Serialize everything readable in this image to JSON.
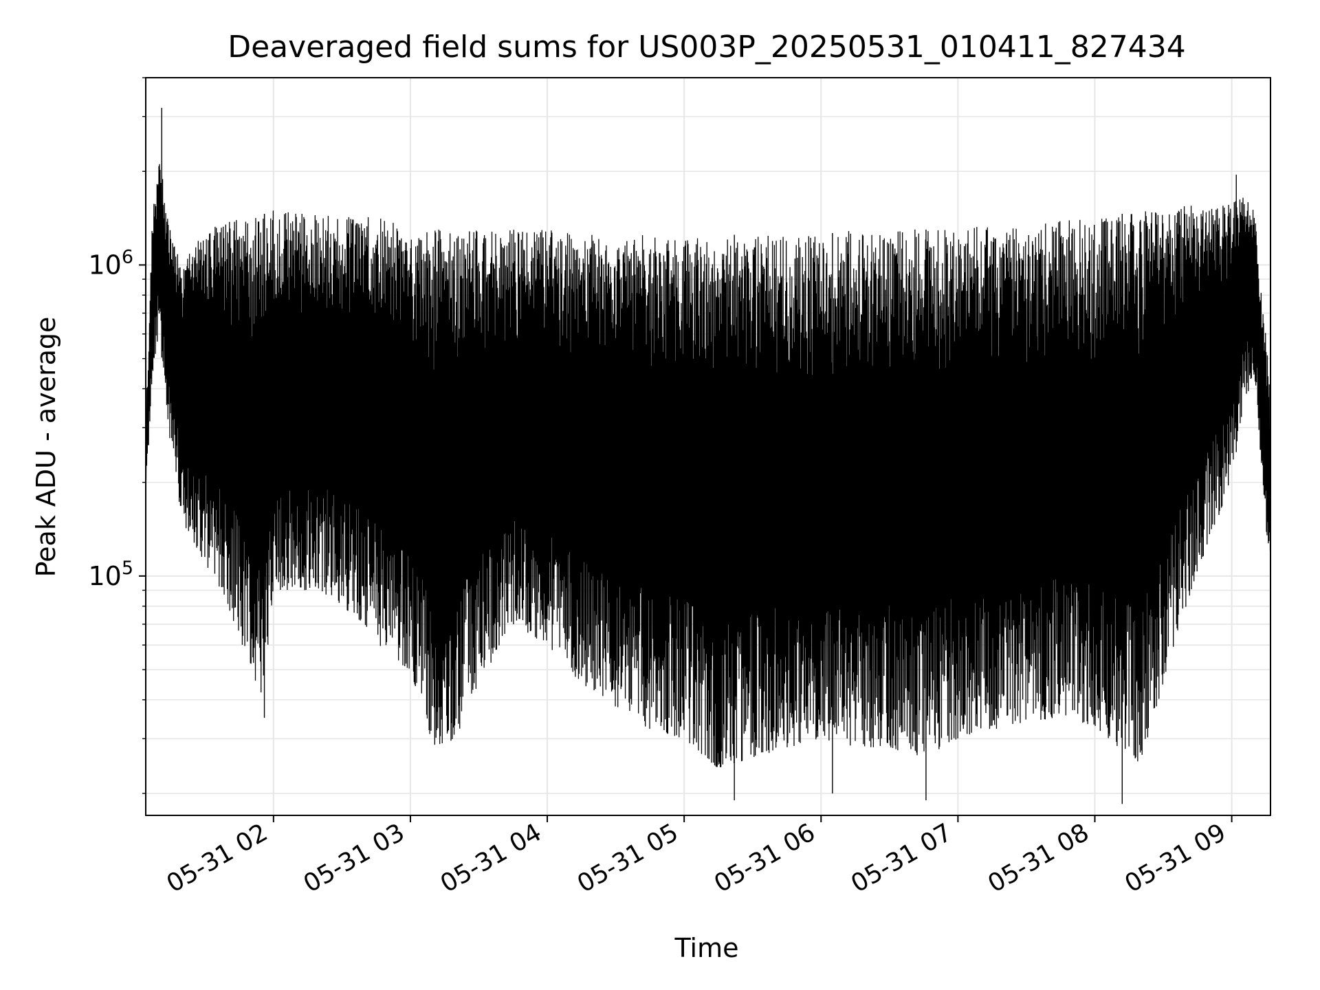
{
  "chart_data": {
    "type": "line",
    "title": "Deaveraged field sums for US003P_20250531_010411_827434",
    "xlabel": "Time",
    "ylabel": "Peak ADU - average",
    "yscale": "log",
    "grid": true,
    "x_ticks": [
      "05-31 02",
      "05-31 03",
      "05-31 04",
      "05-31 05",
      "05-31 06",
      "05-31 07",
      "05-31 08",
      "05-31 09"
    ],
    "y_ticks": [
      {
        "value": 100000,
        "base": "10",
        "exp": "5"
      },
      {
        "value": 1000000,
        "base": "10",
        "exp": "6"
      }
    ],
    "xlim": [
      "2025-05-31 01:04",
      "2025-05-31 09:17"
    ],
    "ylim": [
      17000,
      4000000
    ],
    "series": [
      {
        "color": "#000000",
        "envelope": {
          "x": [
            "2025-05-31 01:04",
            "2025-05-31 01:07",
            "2025-05-31 01:10",
            "2025-05-31 01:15",
            "2025-05-31 01:20",
            "2025-05-31 01:30",
            "2025-05-31 01:40",
            "2025-05-31 01:50",
            "2025-05-31 01:55",
            "2025-05-31 02:00",
            "2025-05-31 02:10",
            "2025-05-31 02:20",
            "2025-05-31 02:30",
            "2025-05-31 02:40",
            "2025-05-31 02:50",
            "2025-05-31 03:00",
            "2025-05-31 03:10",
            "2025-05-31 03:20",
            "2025-05-31 03:30",
            "2025-05-31 03:45",
            "2025-05-31 04:00",
            "2025-05-31 04:15",
            "2025-05-31 04:30",
            "2025-05-31 04:45",
            "2025-05-31 05:00",
            "2025-05-31 05:15",
            "2025-05-31 05:30",
            "2025-05-31 05:45",
            "2025-05-31 06:00",
            "2025-05-31 06:15",
            "2025-05-31 06:30",
            "2025-05-31 06:45",
            "2025-05-31 07:00",
            "2025-05-31 07:15",
            "2025-05-31 07:30",
            "2025-05-31 07:45",
            "2025-05-31 08:00",
            "2025-05-31 08:10",
            "2025-05-31 08:20",
            "2025-05-31 08:30",
            "2025-05-31 08:40",
            "2025-05-31 08:50",
            "2025-05-31 09:00",
            "2025-05-31 09:05",
            "2025-05-31 09:10",
            "2025-05-31 09:17"
          ],
          "high": [
            300000,
            1500000,
            2200000,
            1300000,
            1000000,
            1300000,
            1400000,
            1400000,
            1450000,
            1500000,
            1500000,
            1450000,
            1450000,
            1500000,
            1400000,
            1300000,
            1300000,
            1300000,
            1300000,
            1300000,
            1300000,
            1250000,
            1250000,
            1250000,
            1250000,
            1250000,
            1250000,
            1250000,
            1250000,
            1300000,
            1300000,
            1300000,
            1300000,
            1350000,
            1350000,
            1400000,
            1400000,
            1450000,
            1500000,
            1500000,
            1550000,
            1550000,
            1600000,
            1700000,
            1500000,
            400000
          ],
          "low": [
            180000,
            450000,
            600000,
            250000,
            150000,
            110000,
            80000,
            50000,
            38000,
            90000,
            90000,
            90000,
            80000,
            70000,
            55000,
            50000,
            28000,
            30000,
            45000,
            70000,
            60000,
            45000,
            38000,
            32000,
            30000,
            24000,
            26000,
            28000,
            30000,
            28000,
            28000,
            26000,
            30000,
            32000,
            34000,
            35000,
            33000,
            28000,
            25000,
            45000,
            80000,
            130000,
            200000,
            350000,
            450000,
            90000
          ]
        },
        "notable_points": [
          {
            "x": "2025-05-31 01:11",
            "y": 3200000
          },
          {
            "x": "2025-05-31 01:56",
            "y": 35000
          },
          {
            "x": "2025-05-31 05:22",
            "y": 19000
          },
          {
            "x": "2025-05-31 06:05",
            "y": 20000
          },
          {
            "x": "2025-05-31 06:46",
            "y": 19000
          },
          {
            "x": "2025-05-31 08:12",
            "y": 18500
          },
          {
            "x": "2025-05-31 09:02",
            "y": 1950000
          }
        ]
      }
    ]
  }
}
